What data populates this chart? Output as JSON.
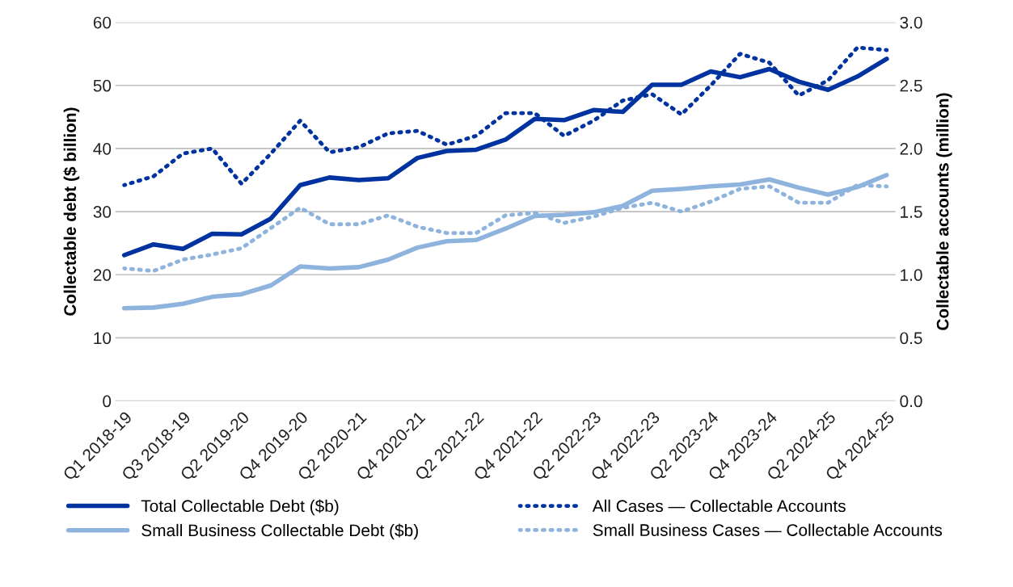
{
  "chart_data": {
    "type": "line",
    "categories": [
      "Q1 2018-19",
      null,
      "Q3 2018-19",
      null,
      "Q2 2019-20",
      null,
      "Q4 2019-20",
      null,
      "Q2 2020-21",
      null,
      "Q4 2020-21",
      null,
      "Q2 2021-22",
      null,
      "Q4 2021-22",
      null,
      "Q2 2022-23",
      null,
      "Q4 2022-23",
      null,
      "Q2 2023-24",
      null,
      "Q4 2023-24",
      null,
      "Q2 2024-25",
      null,
      "Q4 2024-25"
    ],
    "ylabel": "Collectable debt ($ billion)",
    "y2label": "Collectable accounts (million)",
    "ylim": [
      0,
      60
    ],
    "yticks": [
      0,
      10,
      20,
      30,
      40,
      50,
      60
    ],
    "y2lim": [
      0,
      3.0
    ],
    "y2ticks": [
      {
        "value": 0,
        "label": "0.0"
      },
      {
        "value": 0.5,
        "label": "0.5"
      },
      {
        "value": 1,
        "label": "1.0"
      },
      {
        "value": 1.5,
        "label": "1.5"
      },
      {
        "value": 2,
        "label": "2.0"
      },
      {
        "value": 2.5,
        "label": "2.5"
      },
      {
        "value": 3,
        "label": "3.0"
      }
    ],
    "grid": "y",
    "legend": "bottom",
    "marker": "none",
    "series": [
      {
        "name": "Total Collectable Debt ($b)",
        "color": "#0033a0",
        "line_style": "solid",
        "values": [
          23.1,
          24.8,
          24.1,
          26.5,
          26.4,
          28.9,
          34.2,
          35.4,
          35.0,
          35.3,
          38.5,
          39.6,
          39.8,
          41.4,
          44.7,
          44.5,
          46.1,
          45.8,
          50.1,
          50.1,
          52.2,
          51.3,
          52.6,
          50.6,
          49.3,
          51.4,
          54.2
        ]
      },
      {
        "name": "Small Business Collectable Debt ($b)",
        "color": "#8eb4de",
        "line_style": "solid",
        "values": [
          14.7,
          14.8,
          15.4,
          16.5,
          16.9,
          18.3,
          21.3,
          21.0,
          21.2,
          22.4,
          24.3,
          25.3,
          25.5,
          27.3,
          29.3,
          29.5,
          29.9,
          30.9,
          33.3,
          33.6,
          34.0,
          34.3,
          35.1,
          33.8,
          32.7,
          33.9,
          35.8
        ]
      },
      {
        "name": "All Cases — Collectable Accounts",
        "color": "#0033a0",
        "line_style": "dotted",
        "axis": "y2",
        "values": [
          1.71,
          1.78,
          1.96,
          2.0,
          1.72,
          1.96,
          2.22,
          1.97,
          2.01,
          2.12,
          2.14,
          2.03,
          2.1,
          2.28,
          2.28,
          2.1,
          2.22,
          2.38,
          2.43,
          2.27,
          2.5,
          2.75,
          2.68,
          2.42,
          2.54,
          2.8,
          2.78
        ]
      },
      {
        "name": "Small Business Cases — Collectable Accounts",
        "color": "#8eb4de",
        "line_style": "dotted",
        "axis": "y2",
        "values": [
          1.05,
          1.03,
          1.12,
          1.16,
          1.21,
          1.37,
          1.53,
          1.4,
          1.4,
          1.47,
          1.38,
          1.33,
          1.33,
          1.47,
          1.49,
          1.41,
          1.46,
          1.53,
          1.57,
          1.5,
          1.58,
          1.68,
          1.7,
          1.57,
          1.57,
          1.71,
          1.7
        ]
      }
    ]
  }
}
